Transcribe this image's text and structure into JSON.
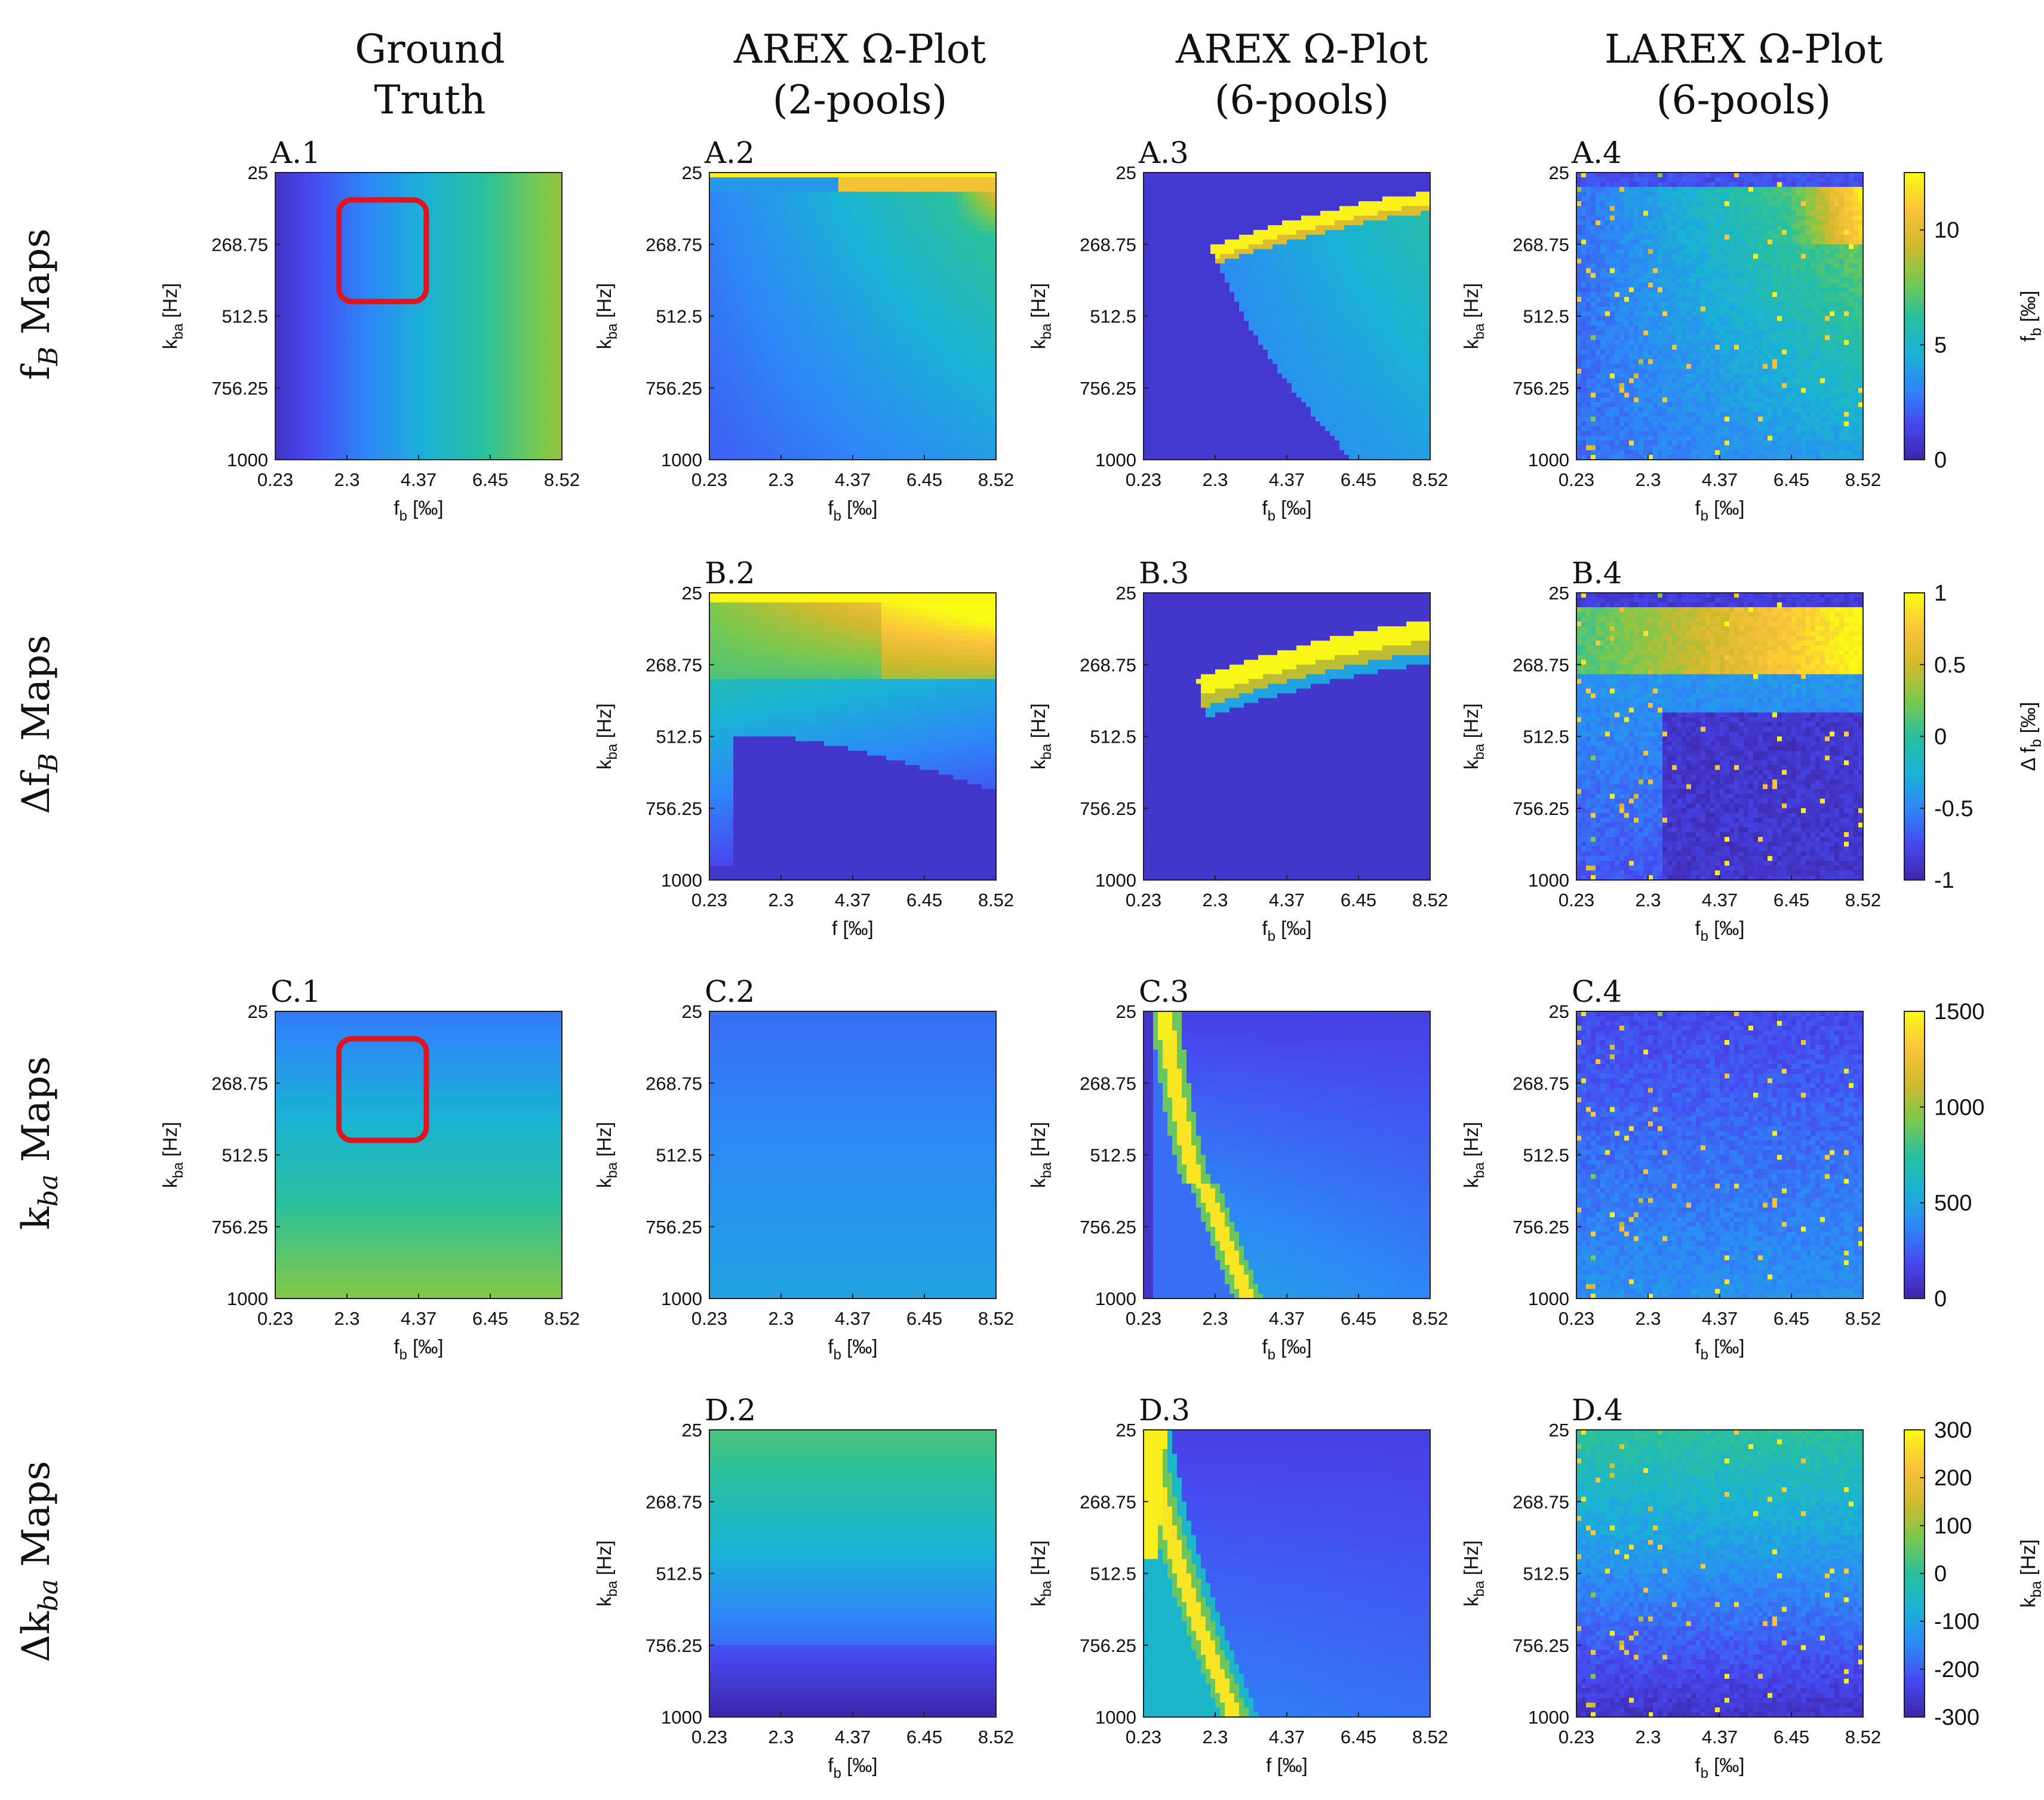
{
  "figure": {
    "column_headers": [
      {
        "line1": "Ground",
        "line2": "Truth"
      },
      {
        "line1": "AREX Ω-Plot",
        "line2": "(2-pools)"
      },
      {
        "line1": "AREX Ω-Plot",
        "line2": "(6-pools)"
      },
      {
        "line1": "LAREX Ω-Plot",
        "line2": "(6-pools)"
      }
    ],
    "row_labels": [
      {
        "main": "f",
        "sub": "B",
        "prefix": "",
        "suffix": " Maps"
      },
      {
        "main": "f",
        "sub": "B",
        "prefix": "Δ",
        "suffix": " Maps"
      },
      {
        "main": "k",
        "sub": "ba",
        "prefix": "",
        "suffix": " Maps"
      },
      {
        "main": "k",
        "sub": "ba",
        "prefix": "Δ",
        "suffix": " Maps"
      }
    ]
  },
  "chart_data": {
    "type": "heatmap",
    "xticks": [
      "0.23",
      "2.3",
      "4.37",
      "6.45",
      "8.52"
    ],
    "yticks": [
      "25",
      "268.75",
      "512.5",
      "756.25",
      "1000"
    ],
    "xlim": [
      0.23,
      8.52
    ],
    "ylim": [
      25,
      1000
    ],
    "colormap": [
      "#3e26a8",
      "#4748f0",
      "#2e87f7",
      "#1ab2d5",
      "#29c09d",
      "#7bc84e",
      "#d2b92c",
      "#fac43b",
      "#f9fb15"
    ],
    "colorbars": [
      {
        "row": 0,
        "label_main": "f",
        "label_sub": "b",
        "label_unit": " [‰]",
        "ticks": [
          "0",
          "5",
          "10"
        ],
        "tick_values": [
          0,
          5,
          10
        ],
        "range": [
          0,
          12.5
        ]
      },
      {
        "row": 1,
        "label_main": "Δ f",
        "label_sub": "b",
        "label_unit": " [‰]",
        "ticks": [
          "-1",
          "-0.5",
          "0",
          "0.5",
          "1"
        ],
        "tick_values": [
          -1,
          -0.5,
          0,
          0.5,
          1
        ],
        "range": [
          -1,
          1
        ]
      },
      {
        "row": 2,
        "label_main": "",
        "label_sub": "",
        "label_unit": "",
        "ticks": [
          "0",
          "500",
          "1000",
          "1500"
        ],
        "tick_values": [
          0,
          500,
          1000,
          1500
        ],
        "range": [
          0,
          1500
        ]
      },
      {
        "row": 3,
        "label_main": "k",
        "label_sub": "ba",
        "label_unit": " [Hz]",
        "ticks": [
          "-300",
          "-200",
          "-100",
          "0",
          "100",
          "200",
          "300"
        ],
        "tick_values": [
          -300,
          -200,
          -100,
          0,
          100,
          200,
          300
        ],
        "range": [
          -300,
          300
        ]
      }
    ],
    "panels": [
      {
        "id": "A.1",
        "row": 0,
        "col": 0,
        "xlabel_main": "f",
        "xlabel_sub": "b",
        "xlabel_unit": " [‰]",
        "ylabel_main": "k",
        "ylabel_sub": "ba",
        "ylabel_unit": " [Hz]",
        "pattern": "gt_fb",
        "roi": {
          "x": [
            2.07,
            4.6
          ],
          "y": [
            118,
            463
          ]
        }
      },
      {
        "id": "A.2",
        "row": 0,
        "col": 1,
        "xlabel_main": "f",
        "xlabel_sub": "b",
        "xlabel_unit": " [‰]",
        "ylabel_main": "k",
        "ylabel_sub": "ba",
        "ylabel_unit": " [Hz]",
        "pattern": "arex2_fb"
      },
      {
        "id": "A.3",
        "row": 0,
        "col": 2,
        "xlabel_main": "f",
        "xlabel_sub": "b",
        "xlabel_unit": " [‰]",
        "ylabel_main": "k",
        "ylabel_sub": "ba",
        "ylabel_unit": " [Hz]",
        "pattern": "arex6_fb"
      },
      {
        "id": "A.4",
        "row": 0,
        "col": 3,
        "xlabel_main": "f",
        "xlabel_sub": "b",
        "xlabel_unit": " [‰]",
        "ylabel_main": "k",
        "ylabel_sub": "ba",
        "ylabel_unit": " [Hz]",
        "pattern": "larex_fb"
      },
      {
        "id": "B.2",
        "row": 1,
        "col": 1,
        "xlabel_main": "f",
        "xlabel_sub": "",
        "xlabel_unit": " [‰]",
        "ylabel_main": "k",
        "ylabel_sub": "ba",
        "ylabel_unit": " [Hz]",
        "pattern": "arex2_dfb"
      },
      {
        "id": "B.3",
        "row": 1,
        "col": 2,
        "xlabel_main": "f",
        "xlabel_sub": "b",
        "xlabel_unit": " [‰]",
        "ylabel_main": "k",
        "ylabel_sub": "ba",
        "ylabel_unit": " [Hz]",
        "pattern": "arex6_dfb"
      },
      {
        "id": "B.4",
        "row": 1,
        "col": 3,
        "xlabel_main": "f",
        "xlabel_sub": "b",
        "xlabel_unit": " [‰]",
        "ylabel_main": "k",
        "ylabel_sub": "ba",
        "ylabel_unit": " [Hz]",
        "pattern": "larex_dfb"
      },
      {
        "id": "C.1",
        "row": 2,
        "col": 0,
        "xlabel_main": "f",
        "xlabel_sub": "b",
        "xlabel_unit": " [‰]",
        "ylabel_main": "k",
        "ylabel_sub": "ba",
        "ylabel_unit": " [Hz]",
        "pattern": "gt_kba",
        "roi": {
          "x": [
            2.07,
            4.6
          ],
          "y": [
            118,
            463
          ]
        }
      },
      {
        "id": "C.2",
        "row": 2,
        "col": 1,
        "xlabel_main": "f",
        "xlabel_sub": "b",
        "xlabel_unit": " [‰]",
        "ylabel_main": "k",
        "ylabel_sub": "ba",
        "ylabel_unit": " [Hz]",
        "pattern": "arex2_kba"
      },
      {
        "id": "C.3",
        "row": 2,
        "col": 2,
        "xlabel_main": "f",
        "xlabel_sub": "b",
        "xlabel_unit": " [‰]",
        "ylabel_main": "k",
        "ylabel_sub": "ba",
        "ylabel_unit": " [Hz]",
        "pattern": "arex6_kba"
      },
      {
        "id": "C.4",
        "row": 2,
        "col": 3,
        "xlabel_main": "f",
        "xlabel_sub": "b",
        "xlabel_unit": " [‰]",
        "ylabel_main": "k",
        "ylabel_sub": "ba",
        "ylabel_unit": " [Hz]",
        "pattern": "larex_kba"
      },
      {
        "id": "D.2",
        "row": 3,
        "col": 1,
        "xlabel_main": "f",
        "xlabel_sub": "b",
        "xlabel_unit": " [‰]",
        "ylabel_main": "k",
        "ylabel_sub": "ba",
        "ylabel_unit": " [Hz]",
        "pattern": "arex2_dkba"
      },
      {
        "id": "D.3",
        "row": 3,
        "col": 2,
        "xlabel_main": "f",
        "xlabel_sub": "",
        "xlabel_unit": " [‰]",
        "ylabel_main": "k",
        "ylabel_sub": "ba",
        "ylabel_unit": " [Hz]",
        "pattern": "arex6_dkba"
      },
      {
        "id": "D.4",
        "row": 3,
        "col": 3,
        "xlabel_main": "f",
        "xlabel_sub": "b",
        "xlabel_unit": " [‰]",
        "ylabel_main": "k",
        "ylabel_sub": "ba",
        "ylabel_unit": " [Hz]",
        "pattern": "larex_dkba"
      }
    ]
  }
}
